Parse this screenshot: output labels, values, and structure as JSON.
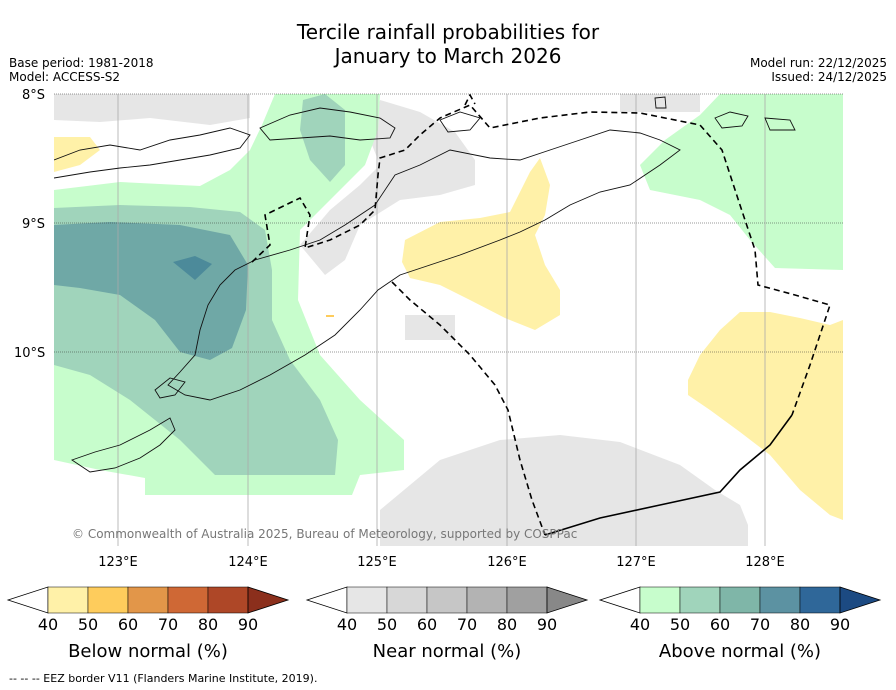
{
  "title_line1": "Tercile rainfall probabilities for",
  "title_line2": "January to March 2026",
  "meta_left": {
    "base_period": "Base period: 1981-2018",
    "model": "Model: ACCESS-S2"
  },
  "meta_right": {
    "model_run": "Model run: 22/12/2025",
    "issued": "Issued: 24/12/2025"
  },
  "map": {
    "lat_labels": [
      "8°S",
      "9°S",
      "10°S"
    ],
    "lon_labels": [
      "123°E",
      "124°E",
      "125°E",
      "126°E",
      "127°E",
      "128°E"
    ],
    "copyright": "© Commonwealth of Australia 2025, Bureau of Meteorology, supported by COSPPac"
  },
  "colorbars": [
    {
      "label": "Below normal (%)",
      "ticks": [
        "40",
        "50",
        "60",
        "70",
        "80",
        "90"
      ],
      "colors": [
        "#ffffff",
        "#fff1a8",
        "#fecc5c",
        "#e29649",
        "#cf6835",
        "#ae4727",
        "#8b2f1c"
      ]
    },
    {
      "label": "Near normal (%)",
      "ticks": [
        "40",
        "50",
        "60",
        "70",
        "80",
        "90"
      ],
      "colors": [
        "#ffffff",
        "#e6e6e6",
        "#d7d7d7",
        "#c6c6c6",
        "#b3b3b3",
        "#a0a0a0",
        "#888888"
      ]
    },
    {
      "label": "Above normal (%)",
      "ticks": [
        "40",
        "50",
        "60",
        "70",
        "80",
        "90"
      ],
      "colors": [
        "#ffffff",
        "#c7fdcc",
        "#a0d4bb",
        "#7fb6a8",
        "#5c92a2",
        "#2f6799",
        "#1c4a82"
      ]
    }
  ],
  "footnote": "--  --  -- EEZ border V11 (Flanders Marine Institute, 2019).",
  "colors": {
    "below_50": "#fff1a8",
    "near_50": "#e6e6e6",
    "above_50": "#c7fdcc",
    "above_60": "#a0d4bb",
    "above_70": "#6fa8a6",
    "above_80": "#4c8a9a"
  }
}
